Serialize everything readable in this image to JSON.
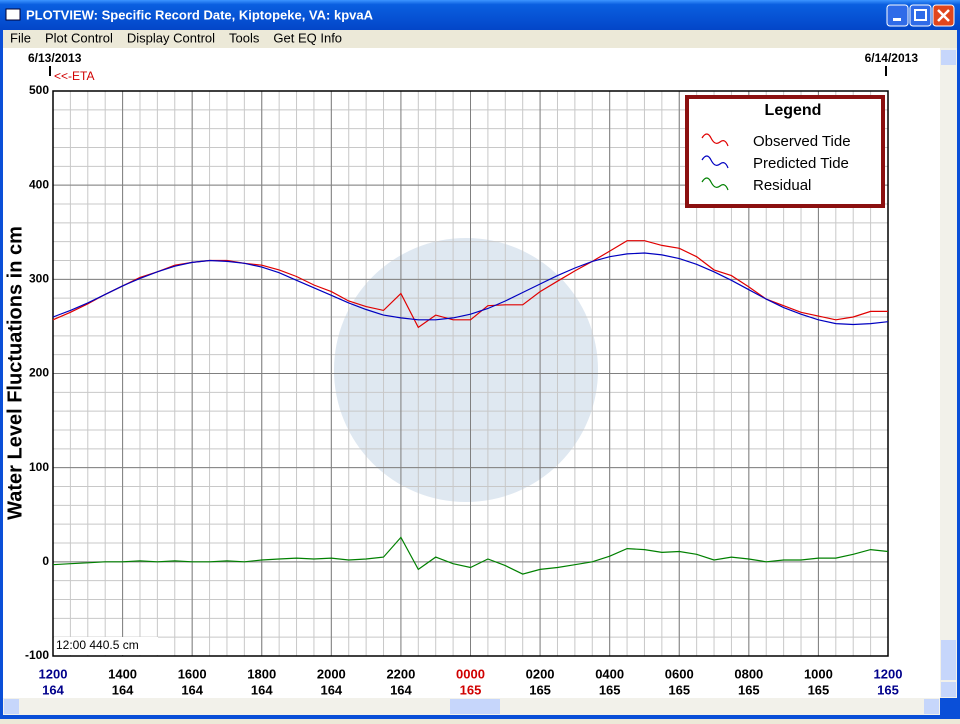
{
  "window": {
    "title": "PLOTVIEW: Specific Record Date, Kiptopeke, VA: kpvaA"
  },
  "menu": [
    "File",
    "Plot Control",
    "Display Control",
    "Tools",
    "Get EQ Info"
  ],
  "chart_data": {
    "type": "line",
    "start_date": "6/13/2013",
    "end_date": "6/14/2013",
    "eta_label": "<<-ETA",
    "ylabel": "Water Level Fluctuations in cm",
    "annotation": "12:00 440.5 cm",
    "legend_title": "Legend",
    "xlim": [
      12,
      36
    ],
    "xticks": [
      {
        "value": 12,
        "label": "1200"
      },
      {
        "value": 14,
        "label": "1400"
      },
      {
        "value": 16,
        "label": "1600"
      },
      {
        "value": 18,
        "label": "1800"
      },
      {
        "value": 20,
        "label": "2000"
      },
      {
        "value": 22,
        "label": "2200"
      },
      {
        "value": 24,
        "label": "0000"
      },
      {
        "value": 26,
        "label": "0200"
      },
      {
        "value": 28,
        "label": "0400"
      },
      {
        "value": 30,
        "label": "0600"
      },
      {
        "value": 32,
        "label": "0800"
      },
      {
        "value": 34,
        "label": "1000"
      },
      {
        "value": 36,
        "label": "1200"
      }
    ],
    "xtick_days": [
      "164",
      "164",
      "164",
      "164",
      "164",
      "164",
      "165",
      "165",
      "165",
      "165",
      "165",
      "165",
      "165"
    ],
    "xtick_label_colors": [
      "#00008b",
      "#000",
      "#000",
      "#000",
      "#000",
      "#000",
      "#d00000",
      "#000",
      "#000",
      "#000",
      "#000",
      "#000",
      "#00008b"
    ],
    "xtick_day_colors": [
      "#00008b",
      "#000",
      "#000",
      "#000",
      "#000",
      "#000",
      "#d00000",
      "#000",
      "#000",
      "#000",
      "#000",
      "#000",
      "#00008b"
    ],
    "ylim": [
      -100,
      500
    ],
    "yticks": [
      -100,
      0,
      100,
      200,
      300,
      400,
      500
    ],
    "grid": true,
    "minor_grid_step": {
      "x": 0.5,
      "y": 20
    },
    "x": [
      12,
      12.5,
      13,
      13.5,
      14,
      14.5,
      15,
      15.5,
      16,
      16.5,
      17,
      17.5,
      18,
      18.5,
      19,
      19.5,
      20,
      20.5,
      21,
      21.5,
      22,
      22.5,
      23,
      23.5,
      24,
      24.5,
      25,
      25.5,
      26,
      26.5,
      27,
      27.5,
      28,
      28.5,
      29,
      29.5,
      30,
      30.5,
      31,
      31.5,
      32,
      32.5,
      33,
      33.5,
      34,
      34.5,
      35,
      35.5,
      36
    ],
    "series": [
      {
        "name": "Observed Tide",
        "color": "#e00000",
        "values": [
          257,
          265,
          274,
          284,
          293,
          302,
          308,
          315,
          318,
          320,
          320,
          317,
          315,
          310,
          303,
          294,
          287,
          277,
          271,
          267,
          285,
          249,
          262,
          257,
          257,
          272,
          273,
          273,
          287,
          298,
          309,
          319,
          330,
          341,
          341,
          336,
          333,
          324,
          310,
          304,
          292,
          279,
          272,
          265,
          261,
          257,
          260,
          266,
          266
        ]
      },
      {
        "name": "Predicted Tide",
        "color": "#0000c0",
        "values": [
          260,
          267,
          275,
          284,
          293,
          301,
          308,
          314,
          318,
          320,
          319,
          317,
          313,
          307,
          299,
          291,
          283,
          275,
          268,
          262,
          259,
          257,
          257,
          259,
          263,
          269,
          277,
          286,
          295,
          304,
          312,
          319,
          324,
          327,
          328,
          326,
          322,
          316,
          308,
          299,
          289,
          279,
          270,
          263,
          257,
          253,
          252,
          253,
          255
        ]
      },
      {
        "name": "Residual",
        "color": "#008000",
        "values": [
          -3,
          -2,
          -1,
          0,
          0,
          1,
          0,
          1,
          0,
          0,
          1,
          0,
          2,
          3,
          4,
          3,
          4,
          2,
          3,
          5,
          26,
          -8,
          5,
          -2,
          -6,
          3,
          -4,
          -13,
          -8,
          -6,
          -3,
          0,
          6,
          14,
          13,
          10,
          11,
          8,
          2,
          5,
          3,
          0,
          2,
          2,
          4,
          4,
          8,
          13,
          11
        ]
      }
    ]
  }
}
